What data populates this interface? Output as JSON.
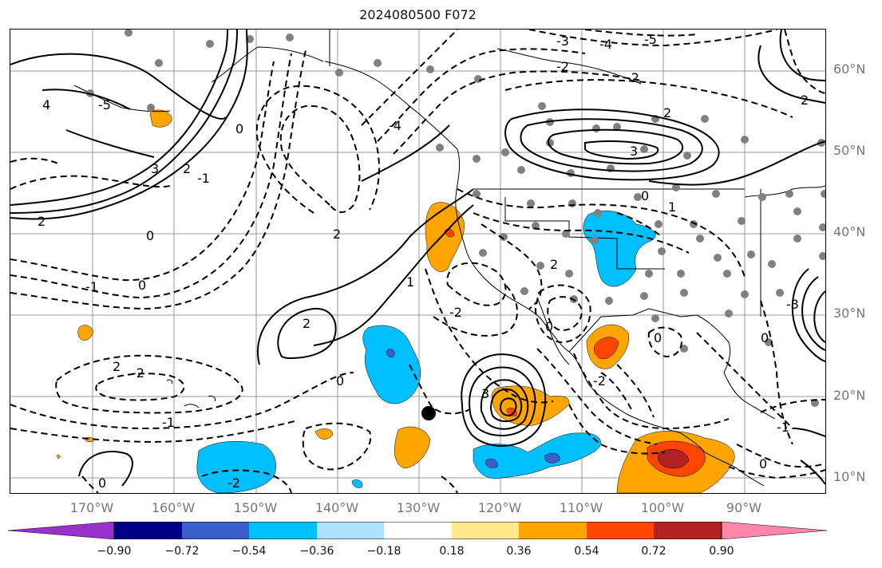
{
  "title": "2024080500 F072",
  "lat_labels": [
    "60°N",
    "50°N",
    "40°N",
    "30°N",
    "20°N",
    "10°N"
  ],
  "lon_labels": [
    "170°W",
    "160°W",
    "150°W",
    "140°W",
    "130°W",
    "120°W",
    "110°W",
    "100°W",
    "90°W"
  ],
  "colorbar": {
    "ticks": [
      "−0.90",
      "−0.72",
      "−0.54",
      "−0.36",
      "−0.18",
      "0.18",
      "0.36",
      "0.54",
      "0.72",
      "0.90"
    ],
    "colors": [
      "#9932cc",
      "#00008b",
      "#3a5fcd",
      "#00bfff",
      "#b0e2ff",
      "#ffffff",
      "#ffe98a",
      "#ffa500",
      "#ff4500",
      "#b22222",
      "#ff88aa"
    ]
  },
  "contour_labels": [
    {
      "text": "4"
    },
    {
      "text": "3"
    },
    {
      "text": "2"
    },
    {
      "text": "-1"
    },
    {
      "text": "0"
    },
    {
      "text": "-1"
    },
    {
      "text": "0"
    },
    {
      "text": "2"
    },
    {
      "text": "1"
    },
    {
      "text": "2"
    },
    {
      "text": "0"
    },
    {
      "text": "2"
    },
    {
      "text": "-2"
    },
    {
      "text": "2"
    },
    {
      "text": "-1"
    },
    {
      "text": "0"
    },
    {
      "text": "-2"
    },
    {
      "text": "3"
    },
    {
      "text": "-2"
    },
    {
      "text": "-3"
    },
    {
      "text": "-4"
    },
    {
      "text": "-5"
    },
    {
      "text": "-2"
    },
    {
      "text": "3"
    },
    {
      "text": "2"
    },
    {
      "text": "0"
    },
    {
      "text": "1"
    },
    {
      "text": "2"
    },
    {
      "text": "0"
    },
    {
      "text": "-2"
    },
    {
      "text": "0"
    },
    {
      "text": "-3"
    },
    {
      "text": "2"
    },
    {
      "text": "0"
    },
    {
      "text": "-1"
    },
    {
      "text": "0"
    },
    {
      "text": "-2"
    },
    {
      "text": "-5"
    },
    {
      "text": "-4"
    },
    {
      "text": "0"
    }
  ],
  "colors": {
    "land_line": "#000000",
    "grid": "#999999",
    "station": "#808080"
  }
}
